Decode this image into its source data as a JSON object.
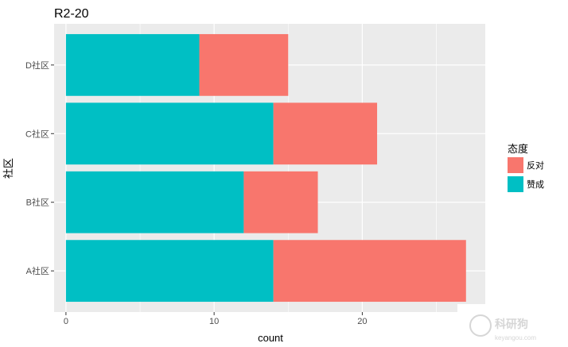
{
  "chart_data": {
    "type": "bar",
    "orientation": "horizontal",
    "stacked": true,
    "title": "R2-20",
    "xlabel": "count",
    "ylabel": "社区",
    "categories": [
      "A社区",
      "B社区",
      "C社区",
      "D社区"
    ],
    "series": [
      {
        "name": "赞成",
        "values": [
          14,
          12,
          14,
          9
        ],
        "color": "#00BFC4"
      },
      {
        "name": "反对",
        "values": [
          13,
          5,
          7,
          6
        ],
        "color": "#F8766D"
      }
    ],
    "xlim": [
      -0.8,
      28.3
    ],
    "xticks": [
      0,
      10,
      20
    ],
    "legend": {
      "title": "态度",
      "position": "right",
      "order": [
        "反对",
        "赞成"
      ]
    },
    "grid": true,
    "panel_background": "#EBEBEB"
  },
  "watermark": {
    "text": "科研狗",
    "subtext": "keyangou.com"
  }
}
